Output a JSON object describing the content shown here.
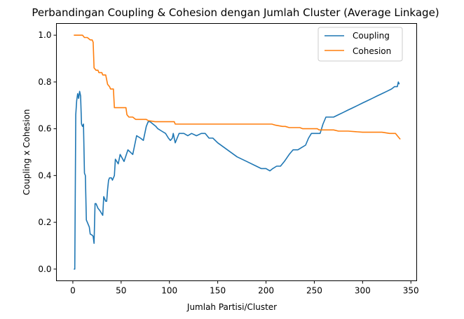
{
  "chart_data": {
    "type": "line",
    "title": "Perbandingan Coupling & Cohesion dengan Jumlah Cluster (Average Linkage)",
    "xlabel": "Jumlah Partisi/Cluster",
    "ylabel": "Coupling x Cohesion",
    "xlim": [
      -17,
      356
    ],
    "ylim": [
      -0.05,
      1.05
    ],
    "xticks": [
      "0",
      "50",
      "100",
      "150",
      "200",
      "250",
      "300",
      "350"
    ],
    "yticks": [
      "0.0",
      "0.2",
      "0.4",
      "0.6",
      "0.8",
      "1.0"
    ],
    "grid": false,
    "legend_position": "top-right",
    "series": [
      {
        "name": "Coupling",
        "color": "#1f77b4",
        "points": [
          [
            1,
            0.0
          ],
          [
            2,
            0.0
          ],
          [
            3,
            0.66
          ],
          [
            4,
            0.72
          ],
          [
            5,
            0.75
          ],
          [
            6,
            0.73
          ],
          [
            7,
            0.76
          ],
          [
            8,
            0.74
          ],
          [
            9,
            0.62
          ],
          [
            10,
            0.61
          ],
          [
            11,
            0.62
          ],
          [
            12,
            0.41
          ],
          [
            13,
            0.4
          ],
          [
            14,
            0.21
          ],
          [
            15,
            0.2
          ],
          [
            17,
            0.18
          ],
          [
            18,
            0.15
          ],
          [
            20,
            0.145
          ],
          [
            21,
            0.14
          ],
          [
            22,
            0.11
          ],
          [
            23,
            0.28
          ],
          [
            24,
            0.28
          ],
          [
            26,
            0.26
          ],
          [
            28,
            0.25
          ],
          [
            31,
            0.23
          ],
          [
            32,
            0.31
          ],
          [
            34,
            0.29
          ],
          [
            35,
            0.29
          ],
          [
            36,
            0.34
          ],
          [
            37,
            0.38
          ],
          [
            38,
            0.39
          ],
          [
            40,
            0.39
          ],
          [
            41,
            0.38
          ],
          [
            43,
            0.4
          ],
          [
            44,
            0.47
          ],
          [
            47,
            0.45
          ],
          [
            49,
            0.49
          ],
          [
            53,
            0.46
          ],
          [
            57,
            0.51
          ],
          [
            62,
            0.49
          ],
          [
            66,
            0.57
          ],
          [
            70,
            0.56
          ],
          [
            73,
            0.55
          ],
          [
            76,
            0.61
          ],
          [
            78,
            0.63
          ],
          [
            80,
            0.63
          ],
          [
            83,
            0.62
          ],
          [
            86,
            0.61
          ],
          [
            88,
            0.6
          ],
          [
            92,
            0.59
          ],
          [
            96,
            0.58
          ],
          [
            99,
            0.56
          ],
          [
            101,
            0.55
          ],
          [
            103,
            0.56
          ],
          [
            104,
            0.58
          ],
          [
            106,
            0.54
          ],
          [
            110,
            0.58
          ],
          [
            115,
            0.58
          ],
          [
            119,
            0.57
          ],
          [
            123,
            0.58
          ],
          [
            128,
            0.57
          ],
          [
            133,
            0.58
          ],
          [
            137,
            0.58
          ],
          [
            141,
            0.56
          ],
          [
            145,
            0.56
          ],
          [
            150,
            0.54
          ],
          [
            160,
            0.51
          ],
          [
            170,
            0.48
          ],
          [
            180,
            0.46
          ],
          [
            190,
            0.44
          ],
          [
            195,
            0.43
          ],
          [
            200,
            0.43
          ],
          [
            204,
            0.42
          ],
          [
            207,
            0.43
          ],
          [
            211,
            0.44
          ],
          [
            215,
            0.44
          ],
          [
            219,
            0.46
          ],
          [
            224,
            0.49
          ],
          [
            228,
            0.51
          ],
          [
            233,
            0.51
          ],
          [
            237,
            0.52
          ],
          [
            241,
            0.53
          ],
          [
            244,
            0.56
          ],
          [
            247,
            0.58
          ],
          [
            252,
            0.58
          ],
          [
            256,
            0.58
          ],
          [
            259,
            0.62
          ],
          [
            262,
            0.65
          ],
          [
            266,
            0.65
          ],
          [
            270,
            0.65
          ],
          [
            275,
            0.66
          ],
          [
            280,
            0.67
          ],
          [
            285,
            0.68
          ],
          [
            290,
            0.69
          ],
          [
            295,
            0.7
          ],
          [
            300,
            0.71
          ],
          [
            305,
            0.72
          ],
          [
            310,
            0.73
          ],
          [
            315,
            0.74
          ],
          [
            320,
            0.75
          ],
          [
            325,
            0.76
          ],
          [
            330,
            0.77
          ],
          [
            333,
            0.78
          ],
          [
            336,
            0.78
          ],
          [
            337,
            0.8
          ],
          [
            338,
            0.79
          ]
        ]
      },
      {
        "name": "Cohesion",
        "color": "#ff7f0e",
        "points": [
          [
            1,
            1.0
          ],
          [
            5,
            1.0
          ],
          [
            10,
            1.0
          ],
          [
            12,
            0.99
          ],
          [
            15,
            0.99
          ],
          [
            18,
            0.98
          ],
          [
            20,
            0.98
          ],
          [
            21,
            0.97
          ],
          [
            22,
            0.86
          ],
          [
            24,
            0.85
          ],
          [
            26,
            0.85
          ],
          [
            27,
            0.84
          ],
          [
            30,
            0.84
          ],
          [
            31,
            0.83
          ],
          [
            34,
            0.83
          ],
          [
            36,
            0.79
          ],
          [
            38,
            0.78
          ],
          [
            39,
            0.77
          ],
          [
            42,
            0.77
          ],
          [
            43,
            0.69
          ],
          [
            48,
            0.69
          ],
          [
            50,
            0.69
          ],
          [
            55,
            0.69
          ],
          [
            56,
            0.66
          ],
          [
            58,
            0.65
          ],
          [
            62,
            0.65
          ],
          [
            65,
            0.64
          ],
          [
            70,
            0.64
          ],
          [
            76,
            0.64
          ],
          [
            78,
            0.635
          ],
          [
            85,
            0.63
          ],
          [
            90,
            0.63
          ],
          [
            100,
            0.63
          ],
          [
            105,
            0.63
          ],
          [
            106,
            0.62
          ],
          [
            110,
            0.62
          ],
          [
            150,
            0.62
          ],
          [
            200,
            0.62
          ],
          [
            206,
            0.62
          ],
          [
            210,
            0.615
          ],
          [
            217,
            0.61
          ],
          [
            220,
            0.61
          ],
          [
            224,
            0.605
          ],
          [
            230,
            0.605
          ],
          [
            235,
            0.605
          ],
          [
            238,
            0.6
          ],
          [
            245,
            0.6
          ],
          [
            250,
            0.6
          ],
          [
            253,
            0.6
          ],
          [
            255,
            0.595
          ],
          [
            262,
            0.595
          ],
          [
            270,
            0.595
          ],
          [
            275,
            0.59
          ],
          [
            285,
            0.59
          ],
          [
            300,
            0.585
          ],
          [
            320,
            0.585
          ],
          [
            328,
            0.58
          ],
          [
            334,
            0.58
          ],
          [
            335,
            0.575
          ],
          [
            336,
            0.57
          ],
          [
            338,
            0.56
          ],
          [
            339,
            0.555
          ]
        ]
      }
    ]
  }
}
